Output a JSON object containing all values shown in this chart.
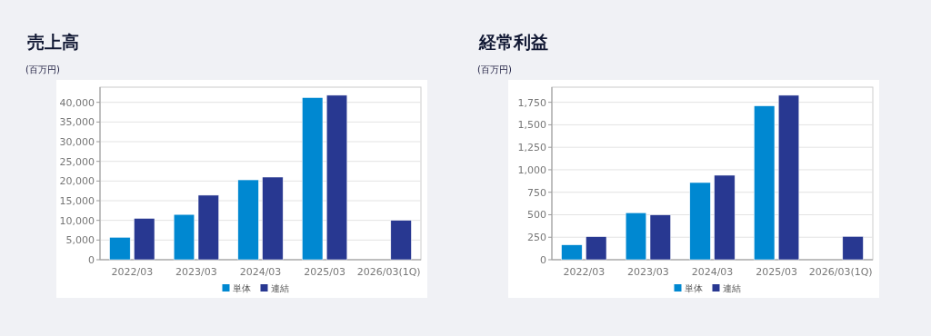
{
  "chart_data": [
    {
      "type": "bar",
      "title": "売上高",
      "ylabel": "(百万円)",
      "categories": [
        "2022/03",
        "2023/03",
        "2024/03",
        "2025/03",
        "2026/03(1Q)"
      ],
      "series": [
        {
          "name": "単体",
          "color": "#0088d1",
          "values": [
            5700,
            11500,
            20300,
            41200,
            null
          ]
        },
        {
          "name": "連結",
          "color": "#283891",
          "values": [
            10500,
            16400,
            21000,
            41800,
            10000
          ]
        }
      ],
      "ylim": [
        0,
        43850
      ],
      "yticks": [
        0,
        {
          "value": 5000,
          "label": "5,000"
        },
        {
          "value": 10000,
          "label": "10,000"
        },
        {
          "value": 15000,
          "label": "15,000"
        },
        {
          "value": 20000,
          "label": "20,000"
        },
        {
          "value": 25000,
          "label": "25,000"
        },
        {
          "value": 30000,
          "label": "30,000"
        },
        {
          "value": 35000,
          "label": "35,000"
        },
        {
          "value": 40000,
          "label": "40,000"
        }
      ],
      "grid": "y",
      "legend": "bottom"
    },
    {
      "type": "bar",
      "title": "経常利益",
      "ylabel": "(百万円)",
      "categories": [
        "2022/03",
        "2023/03",
        "2024/03",
        "2025/03",
        "2026/03(1Q)"
      ],
      "series": [
        {
          "name": "単体",
          "color": "#0088d1",
          "values": [
            165,
            522,
            858,
            1710,
            null
          ]
        },
        {
          "name": "連結",
          "color": "#283891",
          "values": [
            256,
            498,
            939,
            1828,
            259
          ]
        }
      ],
      "ylim": [
        0,
        1918
      ],
      "yticks": [
        0,
        250,
        500,
        750,
        {
          "value": 1000,
          "label": "1,000"
        },
        {
          "value": 1250,
          "label": "1,250"
        },
        {
          "value": 1500,
          "label": "1,500"
        },
        {
          "value": 1750,
          "label": "1,750"
        }
      ],
      "grid": "y",
      "legend": "bottom"
    }
  ]
}
